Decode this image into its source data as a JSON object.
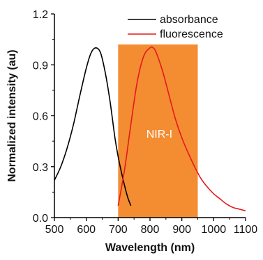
{
  "chart_data": {
    "type": "line",
    "title": "",
    "xlabel": "Wavelength (nm)",
    "ylabel": "Normalized intensity (au)",
    "xlim": [
      500,
      1100
    ],
    "ylim": [
      0.0,
      1.2
    ],
    "x_ticks": [
      500,
      600,
      700,
      800,
      900,
      1000,
      1100
    ],
    "x_tick_labels": [
      "500",
      "600",
      "700",
      "800",
      "900",
      "1000",
      "1100"
    ],
    "y_ticks": [
      0.0,
      0.3,
      0.6,
      0.9,
      1.2
    ],
    "y_tick_labels": [
      "0.0",
      "0.3",
      "0.6",
      "0.9",
      "1.2"
    ],
    "grid": false,
    "legend_position": "top-right",
    "series": [
      {
        "name": "absorbance",
        "color": "#000000",
        "x": [
          500,
          520,
          540,
          560,
          580,
          600,
          615,
          630,
          645,
          660,
          675,
          690,
          700,
          710,
          720,
          730,
          740
        ],
        "y": [
          0.22,
          0.3,
          0.41,
          0.55,
          0.72,
          0.88,
          0.97,
          1.0,
          0.97,
          0.85,
          0.68,
          0.47,
          0.36,
          0.27,
          0.19,
          0.12,
          0.07
        ]
      },
      {
        "name": "fluorescence",
        "color": "#e31a1c",
        "x": [
          700,
          720,
          740,
          760,
          780,
          800,
          810,
          820,
          840,
          860,
          880,
          900,
          920,
          940,
          960,
          980,
          1000,
          1020,
          1040,
          1060,
          1080,
          1100
        ],
        "y": [
          0.07,
          0.28,
          0.55,
          0.8,
          0.95,
          1.0,
          1.0,
          0.97,
          0.86,
          0.72,
          0.58,
          0.47,
          0.38,
          0.3,
          0.23,
          0.18,
          0.14,
          0.11,
          0.08,
          0.06,
          0.05,
          0.04
        ]
      }
    ],
    "regions": [
      {
        "label": "NIR-I",
        "x_range": [
          700,
          950
        ],
        "y_range": [
          0.0,
          1.02
        ],
        "color": "#f48c32"
      }
    ]
  }
}
